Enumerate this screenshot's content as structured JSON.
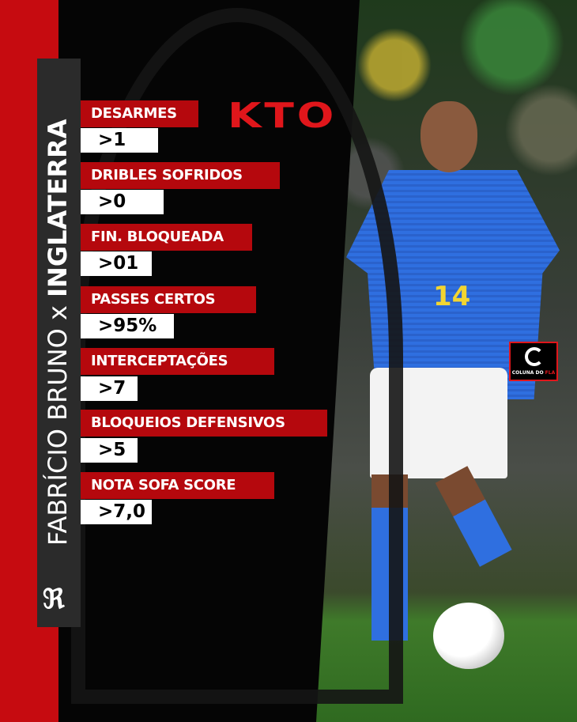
{
  "title": {
    "name": "FABRÍCIO BRUNO",
    "separator": "x",
    "opponent": "INGLATERRA"
  },
  "sponsor": "KTO",
  "watermark": "COLUNA DO FLA",
  "crest": "CRF",
  "stats": [
    {
      "label": "DESARMES",
      "value": ">1"
    },
    {
      "label": "DRIBLES SOFRIDOS",
      "value": ">0"
    },
    {
      "label": "FIN. BLOQUEADA",
      "value": ">01"
    },
    {
      "label": "PASSES CERTOS",
      "value": ">95%"
    },
    {
      "label": "INTERCEPTAÇÕES",
      "value": ">7"
    },
    {
      "label": "BLOQUEIOS DEFENSIVOS",
      "value": ">5"
    },
    {
      "label": "NOTA SOFA SCORE",
      "value": ">7,0"
    }
  ],
  "player_number": "14",
  "colors": {
    "red": "#c60b10",
    "label_bg": "#b5080d",
    "band": "#2b2b2b",
    "background": "#050505",
    "kto": "#e0161b"
  }
}
